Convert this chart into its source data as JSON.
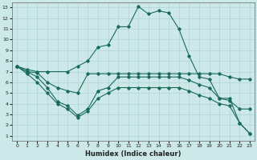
{
  "xlabel": "Humidex (Indice chaleur)",
  "background_color": "#cce8e8",
  "grid_color": "#b0d4d4",
  "line_color": "#1a6b5a",
  "xlim": [
    -0.5,
    23.5
  ],
  "ylim": [
    0.5,
    13.5
  ],
  "xticks": [
    0,
    1,
    2,
    3,
    4,
    5,
    6,
    7,
    8,
    9,
    10,
    11,
    12,
    13,
    14,
    15,
    16,
    17,
    18,
    19,
    20,
    21,
    22,
    23
  ],
  "yticks": [
    1,
    2,
    3,
    4,
    5,
    6,
    7,
    8,
    9,
    10,
    11,
    12,
    13
  ],
  "series1_x": [
    0,
    1,
    2,
    3,
    5,
    6,
    7,
    8,
    9,
    10,
    11,
    12,
    13,
    14,
    15,
    16,
    17,
    18,
    19,
    20,
    21,
    22,
    23
  ],
  "series1_y": [
    7.5,
    7.2,
    7.0,
    7.0,
    7.0,
    7.5,
    8.0,
    9.3,
    9.5,
    11.2,
    11.2,
    13.1,
    12.4,
    12.7,
    12.5,
    11.0,
    8.5,
    6.5,
    6.3,
    4.5,
    4.5,
    2.2,
    1.2
  ],
  "series2_x": [
    0,
    1,
    2,
    3,
    4,
    5,
    6,
    7,
    8,
    9,
    10,
    11,
    12,
    13,
    14,
    15,
    16,
    17,
    18,
    19,
    20,
    21,
    22,
    23
  ],
  "series2_y": [
    7.5,
    7.0,
    6.9,
    6.0,
    5.5,
    5.2,
    5.0,
    6.8,
    6.8,
    6.8,
    6.8,
    6.8,
    6.8,
    6.8,
    6.8,
    6.8,
    6.8,
    6.8,
    6.8,
    6.8,
    6.8,
    6.5,
    6.3,
    6.3
  ],
  "series3_x": [
    0,
    1,
    2,
    3,
    4,
    5,
    6,
    7,
    8,
    9,
    10,
    11,
    12,
    13,
    14,
    15,
    16,
    17,
    18,
    19,
    20,
    21,
    22,
    23
  ],
  "series3_y": [
    7.5,
    7.0,
    6.5,
    5.5,
    4.2,
    3.8,
    2.9,
    3.5,
    5.2,
    5.5,
    6.5,
    6.5,
    6.5,
    6.5,
    6.5,
    6.5,
    6.5,
    6.2,
    5.8,
    5.5,
    4.5,
    4.3,
    3.5,
    3.5
  ],
  "series4_x": [
    0,
    1,
    2,
    3,
    4,
    5,
    6,
    7,
    8,
    9,
    10,
    11,
    12,
    13,
    14,
    15,
    16,
    17,
    18,
    19,
    20,
    21,
    22,
    23
  ],
  "series4_y": [
    7.5,
    6.8,
    6.0,
    5.0,
    4.0,
    3.5,
    2.7,
    3.3,
    4.5,
    5.0,
    5.5,
    5.5,
    5.5,
    5.5,
    5.5,
    5.5,
    5.5,
    5.2,
    4.8,
    4.5,
    4.0,
    3.8,
    2.2,
    1.2
  ]
}
